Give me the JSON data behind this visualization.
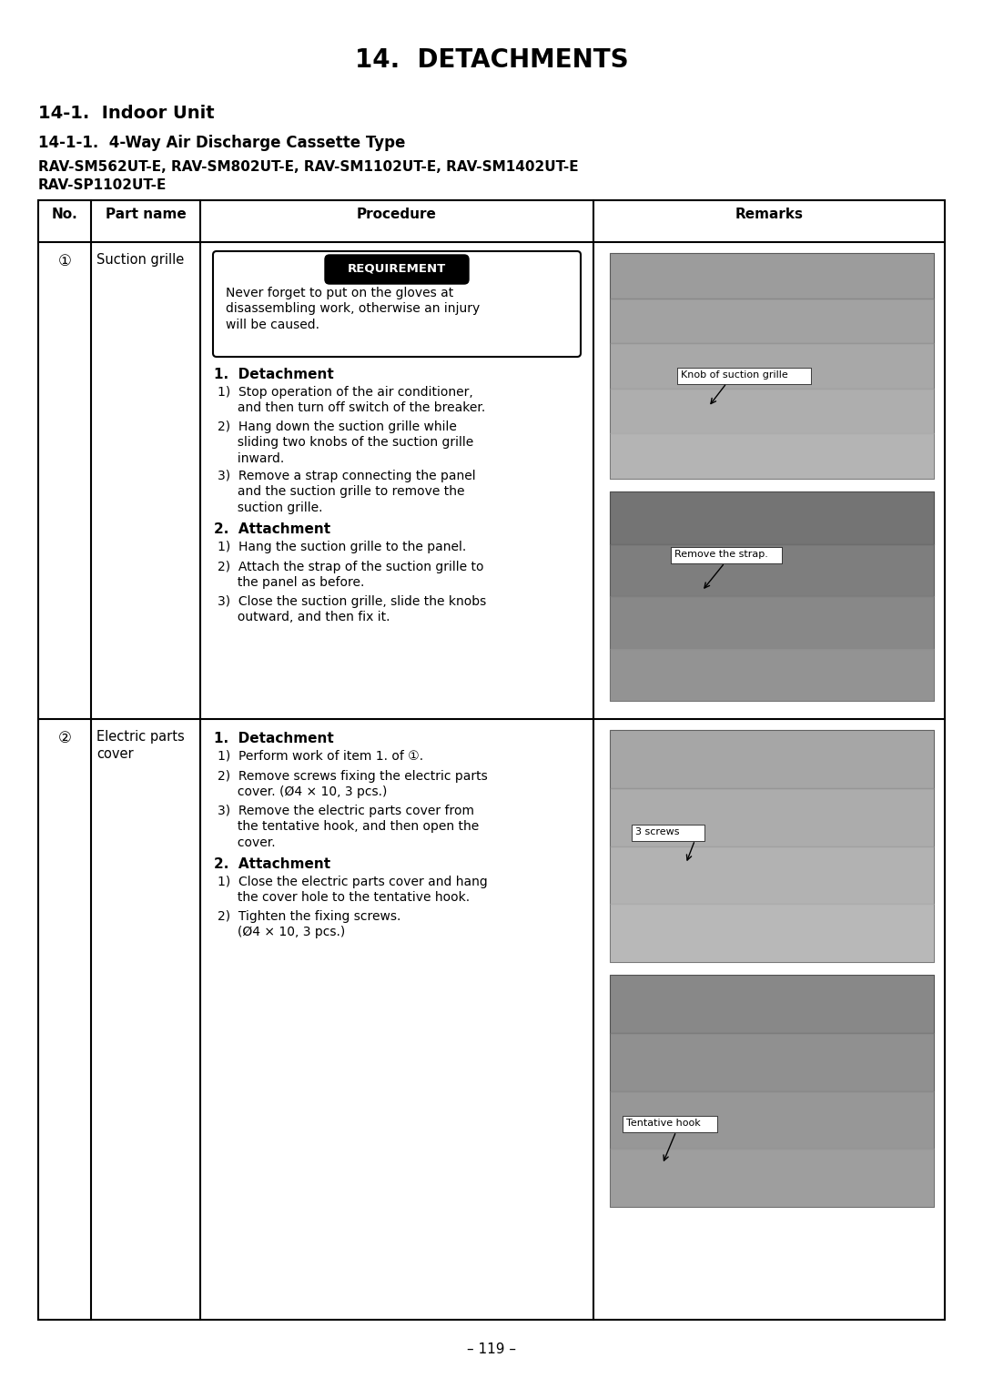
{
  "title": "14.  DETACHMENTS",
  "section": "14-1.  Indoor Unit",
  "subsection": "14-1-1.  4-Way Air Discharge Cassette Type",
  "models_line1": "RAV-SM562UT-E, RAV-SM802UT-E, RAV-SM1102UT-E, RAV-SM1402UT-E",
  "models_line2": "RAV-SP1102UT-E",
  "col_headers": [
    "No.",
    "Part name",
    "Procedure",
    "Remarks"
  ],
  "page_number": "– 119 –",
  "row1_no": "①",
  "row1_part": "Suction grille",
  "row2_no": "②",
  "row2_part": "Electric parts\ncover",
  "requirement_text": "Never forget to put on the gloves at\ndisassembling work, otherwise an injury\nwill be caused.",
  "row1_det_title": "1.  Detachment",
  "row1_det_items": [
    "1)  Stop operation of the air conditioner,\n     and then turn off switch of the breaker.",
    "2)  Hang down the suction grille while\n     sliding two knobs of the suction grille\n     inward.",
    "3)  Remove a strap connecting the panel\n     and the suction grille to remove the\n     suction grille."
  ],
  "row1_att_title": "2.  Attachment",
  "row1_att_items": [
    "1)  Hang the suction grille to the panel.",
    "2)  Attach the strap of the suction grille to\n     the panel as before.",
    "3)  Close the suction grille, slide the knobs\n     outward, and then fix it."
  ],
  "row2_det_title": "1.  Detachment",
  "row2_det_items": [
    "1)  Perform work of item 1. of ①.",
    "2)  Remove screws fixing the electric parts\n     cover. (Ø4 × 10, 3 pcs.)",
    "3)  Remove the electric parts cover from\n     the tentative hook, and then open the\n     cover."
  ],
  "row2_att_title": "2.  Attachment",
  "row2_att_items": [
    "1)  Close the electric parts cover and hang\n     the cover hole to the tentative hook.",
    "2)  Tighten the fixing screws.\n     (Ø4 × 10, 3 pcs.)"
  ],
  "img1_caption": "Knob of suction grille",
  "img2_caption": "Remove the strap.",
  "img3_caption": "3 screws",
  "img4_caption": "Tentative hook",
  "bg_color": "#ffffff",
  "text_color": "#000000"
}
